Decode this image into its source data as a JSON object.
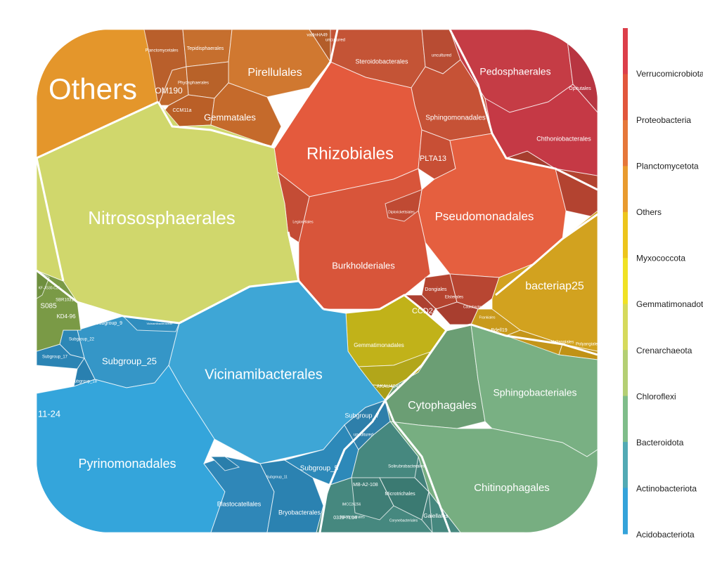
{
  "chart_data": {
    "type": "voronoi-treemap",
    "legend": {
      "placement": "right",
      "entries": [
        {
          "label": "Verrucomicrobiota",
          "color": "#dc3f4a"
        },
        {
          "label": "Proteobacteria",
          "color": "#e2563c"
        },
        {
          "label": "Planctomycetota",
          "color": "#e6773a"
        },
        {
          "label": "Others",
          "color": "#e99b2e"
        },
        {
          "label": "Myxococcota",
          "color": "#edc51c"
        },
        {
          "label": "Gemmatimonadota",
          "color": "#f0e224"
        },
        {
          "label": "Crenarchaeota",
          "color": "#d6da5c"
        },
        {
          "label": "Chloroflexi",
          "color": "#b4cf74"
        },
        {
          "label": "Bacteroidota",
          "color": "#7fbd8a"
        },
        {
          "label": "Actinobacteriota",
          "color": "#52aab4"
        },
        {
          "label": "Acidobacteriota",
          "color": "#34a3da"
        }
      ]
    },
    "labels": [
      {
        "text": "Others",
        "size": 42,
        "color": "#f3e6d8"
      },
      {
        "text": "Planctomycetales",
        "size": 6
      },
      {
        "text": "Tepidisphaerales",
        "size": 7
      },
      {
        "text": "Pirellulales",
        "size": 16
      },
      {
        "text": "OM190",
        "size": 12
      },
      {
        "text": "Phycisphaerales",
        "size": 6
      },
      {
        "text": "CCM11a",
        "size": 7
      },
      {
        "text": "Gemmatales",
        "size": 13
      },
      {
        "text": "uncultured",
        "size": 6
      },
      {
        "text": "vadinHA49",
        "size": 6
      },
      {
        "text": "Steroidobacterales",
        "size": 9
      },
      {
        "text": "uncultured",
        "size": 6
      },
      {
        "text": "Sphingomonadales",
        "size": 10
      },
      {
        "text": "Pedosphaerales",
        "size": 14
      },
      {
        "text": "Opitutales",
        "size": 7
      },
      {
        "text": "Chthoniobacterales",
        "size": 9
      },
      {
        "text": "Rhizobiales",
        "size": 24
      },
      {
        "text": "PLTA13",
        "size": 11
      },
      {
        "text": "Nitrososphaerales",
        "size": 26
      },
      {
        "text": "Pseudomonadales",
        "size": 17
      },
      {
        "text": "Burkholderiales",
        "size": 13
      },
      {
        "text": "Legionellales",
        "size": 5
      },
      {
        "text": "Diplorickettsiales",
        "size": 5
      },
      {
        "text": "Dongiales",
        "size": 7
      },
      {
        "text": "CCD24",
        "size": 11
      },
      {
        "text": "Caulobacterales",
        "size": 5
      },
      {
        "text": "Elsterales",
        "size": 6
      },
      {
        "text": "bacteriap25",
        "size": 16
      },
      {
        "text": "Bdell19",
        "size": 7
      },
      {
        "text": "Haliangiales",
        "size": 6
      },
      {
        "text": "Polyangiales",
        "size": 6
      },
      {
        "text": "Gemmatimonadales",
        "size": 8
      },
      {
        "text": "AKAU4049",
        "size": 7
      },
      {
        "text": "Cytophagales",
        "size": 16
      },
      {
        "text": "Sphingobacteriales",
        "size": 14
      },
      {
        "text": "Chitinophagales",
        "size": 15
      },
      {
        "text": "Vicinamibacterales",
        "size": 20
      },
      {
        "text": "Subgroup_25",
        "size": 13
      },
      {
        "text": "Subgroup_9",
        "size": 7
      },
      {
        "text": "Subgroup_22",
        "size": 6
      },
      {
        "text": "Subgroup_17",
        "size": 6
      },
      {
        "text": "Subgroup_18",
        "size": 6
      },
      {
        "text": "Vicinamibacteraceae",
        "size": 4
      },
      {
        "text": "Blastocatellales",
        "size": 9
      },
      {
        "text": "Bryobacterales",
        "size": 9
      },
      {
        "text": "Subgroup_11",
        "size": 5
      },
      {
        "text": "Subgroup_5",
        "size": 10
      },
      {
        "text": "Subgroup_7",
        "size": 9
      },
      {
        "text": "Pyrinomonadales",
        "size": 18
      },
      {
        "text": "S085",
        "size": 10
      },
      {
        "text": "KD4-96",
        "size": 8
      },
      {
        "text": "SBR1031",
        "size": 6
      },
      {
        "text": "KF-JG30-C25",
        "size": 5
      },
      {
        "text": "PAUC26f",
        "size": 9
      },
      {
        "text": "11-24",
        "size": 13
      },
      {
        "text": "Solirubrobacterales",
        "size": 6
      },
      {
        "text": "Microtrichales",
        "size": 7
      },
      {
        "text": "MB-A2-108",
        "size": 7
      },
      {
        "text": "IMCC26256",
        "size": 5
      },
      {
        "text": "Actinomarinales",
        "size": 5
      },
      {
        "text": "Gaiellales",
        "size": 8
      },
      {
        "text": "Corynebacteriales",
        "size": 5
      },
      {
        "text": "0319-7L14",
        "size": 7
      },
      {
        "text": "uncultured",
        "size": 6
      },
      {
        "text": "Frankiales",
        "size": 5
      }
    ]
  }
}
